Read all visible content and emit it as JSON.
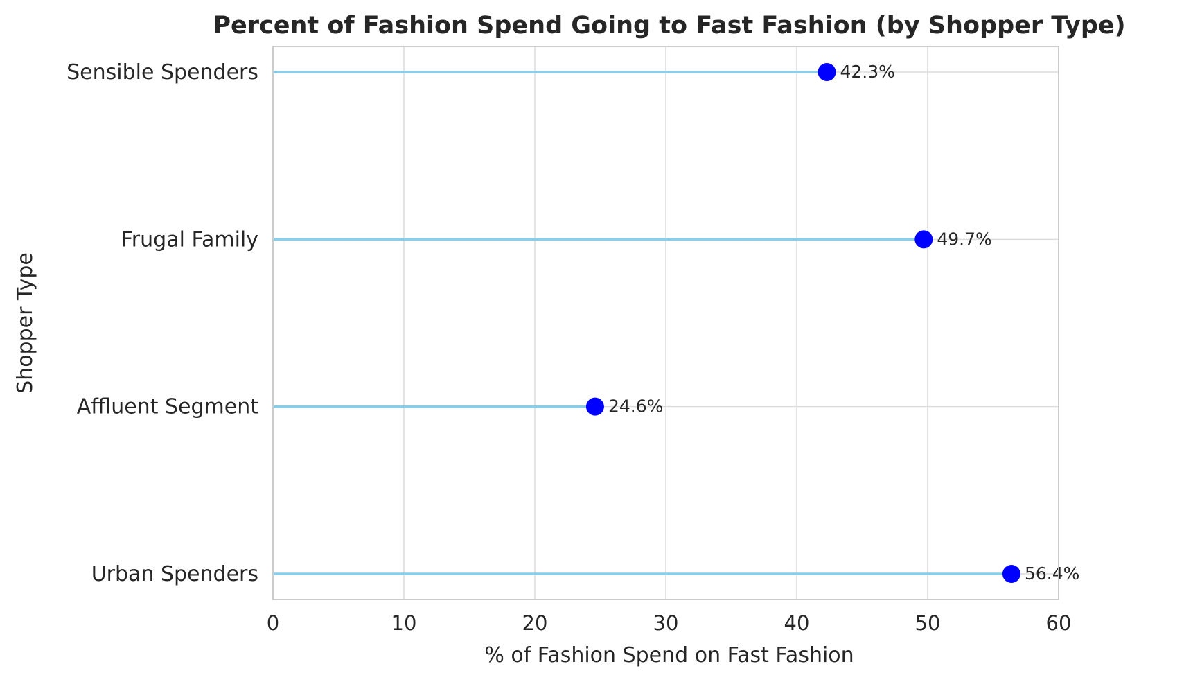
{
  "chart_data": {
    "type": "lollipop",
    "orientation": "horizontal",
    "title": "Percent of Fashion Spend Going to Fast Fashion (by Shopper Type)",
    "xlabel": "% of Fashion Spend on Fast Fashion",
    "ylabel": "Shopper Type",
    "xlim": [
      0,
      60
    ],
    "xticks": [
      "0",
      "10",
      "20",
      "30",
      "40",
      "50",
      "60"
    ],
    "categories": [
      "Sensible Spenders",
      "Frugal Family",
      "Affluent Segment",
      "Urban Spenders"
    ],
    "values": [
      42.3,
      49.7,
      24.6,
      56.4
    ],
    "data_labels": [
      "42.3%",
      "49.7%",
      "24.6%",
      "56.4%"
    ],
    "grid": true,
    "colors": {
      "stem": "#87ceeb",
      "marker": "#0000ff",
      "grid": "#dcdcdc",
      "spine": "#cccccc",
      "text": "#262626"
    }
  }
}
